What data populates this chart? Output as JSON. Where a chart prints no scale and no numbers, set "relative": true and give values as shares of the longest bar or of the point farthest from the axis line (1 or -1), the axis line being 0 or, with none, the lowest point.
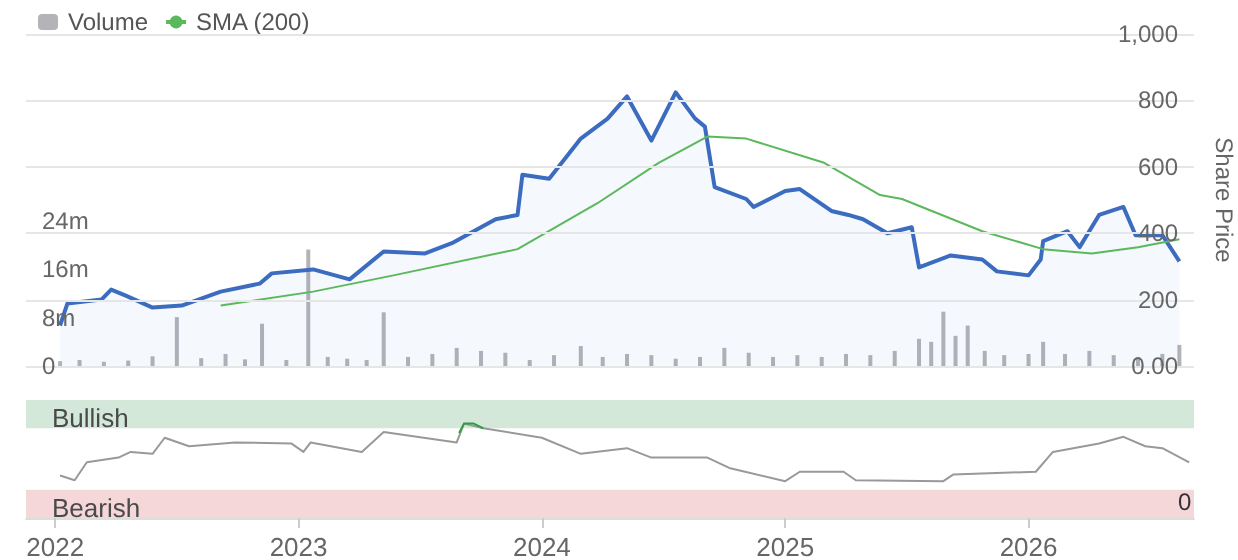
{
  "chart_data": [
    {
      "type": "line",
      "ylabel": "Share Price",
      "legend": "top left",
      "grid": "y",
      "tick_labels": "y",
      "xlim": [
        2021.88,
        2026.68
      ],
      "xticks": [
        2022,
        2023,
        2024,
        2025,
        2026
      ],
      "ylim": [
        0,
        1000
      ],
      "yticks": [
        {
          "value": 0,
          "label": "0.00"
        },
        200,
        400,
        600,
        800,
        {
          "value": 1000,
          "label": "1,000"
        }
      ],
      "y2lim": [
        0,
        55
      ],
      "y2ticks": [
        0,
        {
          "value": 8,
          "label": "8m"
        },
        {
          "value": 16,
          "label": "16m"
        },
        {
          "value": 24,
          "label": "24m"
        }
      ],
      "series": [
        {
          "type": "bar",
          "name": "Volume",
          "axis": "y2",
          "color": "#b4b4b8",
          "x": [
            2022.02,
            2022.1,
            2022.2,
            2022.3,
            2022.4,
            2022.5,
            2022.6,
            2022.7,
            2022.78,
            2022.85,
            2022.95,
            2023.04,
            2023.12,
            2023.2,
            2023.28,
            2023.35,
            2023.45,
            2023.55,
            2023.65,
            2023.75,
            2023.85,
            2023.95,
            2024.05,
            2024.16,
            2024.25,
            2024.35,
            2024.45,
            2024.55,
            2024.65,
            2024.75,
            2024.85,
            2024.95,
            2025.05,
            2025.15,
            2025.25,
            2025.35,
            2025.45,
            2025.55,
            2025.6,
            2025.65,
            2025.7,
            2025.75,
            2025.82,
            2025.9,
            2026.0,
            2026.06,
            2026.15,
            2026.25,
            2026.35,
            2026.45,
            2026.55,
            2026.62
          ],
          "values": [
            0.8,
            1.0,
            0.7,
            0.9,
            1.6,
            8.1,
            1.3,
            2.0,
            1.1,
            7.0,
            1.0,
            19.3,
            1.5,
            1.2,
            1.0,
            8.9,
            1.5,
            2.0,
            3.0,
            2.5,
            2.2,
            1.0,
            1.8,
            3.3,
            1.5,
            2.0,
            1.8,
            1.2,
            1.5,
            3.0,
            2.2,
            1.5,
            1.8,
            1.5,
            2.0,
            1.8,
            2.5,
            4.5,
            4.0,
            9.0,
            5.0,
            6.7,
            2.5,
            1.8,
            2.0,
            4.0,
            2.0,
            2.5,
            1.8,
            1.5,
            2.0,
            3.5
          ]
        },
        {
          "type": "area",
          "color": "#3c6cc0",
          "x": [
            2022.02,
            2022.05,
            2022.19,
            2022.23,
            2022.29,
            2022.4,
            2022.52,
            2022.68,
            2022.84,
            2022.89,
            2023.06,
            2023.21,
            2023.35,
            2023.52,
            2023.63,
            2023.81,
            2023.9,
            2023.92,
            2024.03,
            2024.16,
            2024.27,
            2024.35,
            2024.45,
            2024.55,
            2024.63,
            2024.67,
            2024.71,
            2024.84,
            2024.87,
            2025.0,
            2025.06,
            2025.19,
            2025.26,
            2025.32,
            2025.42,
            2025.52,
            2025.55,
            2025.68,
            2025.81,
            2025.87,
            2026.0,
            2026.05,
            2026.06,
            2026.16,
            2026.21,
            2026.29,
            2026.39,
            2026.44,
            2026.55,
            2026.62
          ],
          "values": [
            122,
            188,
            200,
            230,
            212,
            176,
            182,
            224,
            248,
            279,
            291,
            261,
            345,
            339,
            370,
            442,
            455,
            576,
            564,
            685,
            745,
            812,
            679,
            824,
            745,
            721,
            539,
            503,
            479,
            527,
            533,
            467,
            455,
            442,
            400,
            418,
            297,
            333,
            321,
            285,
            273,
            321,
            376,
            406,
            358,
            455,
            479,
            394,
            394,
            315
          ]
        },
        {
          "name": "SMA (200)",
          "color": "#5cb85c",
          "x": [
            2022.68,
            2023.06,
            2023.39,
            2023.9,
            2024.23,
            2024.48,
            2024.68,
            2024.84,
            2025.16,
            2025.39,
            2025.48,
            2025.81,
            2026.06,
            2026.26,
            2026.45,
            2026.62
          ],
          "values": [
            182,
            224,
            273,
            352,
            491,
            612,
            691,
            685,
            612,
            515,
            503,
            406,
            352,
            339,
            358,
            382
          ]
        }
      ]
    },
    {
      "type": "line",
      "relative": true,
      "xlim": [
        2021.88,
        2026.68
      ],
      "xticks": [
        2022,
        2023,
        2024,
        2025,
        2026
      ],
      "annotations": [
        "0"
      ],
      "grid": false,
      "bands": [
        {
          "axis": "y",
          "from": 0.95,
          "to": 1.25,
          "label": "Bullish",
          "color": "#d4e8da"
        },
        {
          "axis": "y",
          "from": 0,
          "to": 0.3,
          "label": "Bearish",
          "color": "#f5d6d9"
        }
      ],
      "series": [
        {
          "color": "#999999",
          "x": [
            2022.02,
            2022.08,
            2022.13,
            2022.26,
            2022.31,
            2022.4,
            2022.45,
            2022.55,
            2022.74,
            2022.97,
            2023.02,
            2023.05,
            2023.26,
            2023.35,
            2023.65,
            2023.68,
            2023.76,
            2024.0,
            2024.16,
            2024.35,
            2024.45,
            2024.68,
            2024.77,
            2025.0,
            2025.06,
            2025.24,
            2025.29,
            2025.65,
            2025.69,
            2026.03,
            2026.1,
            2026.29,
            2026.39,
            2026.48,
            2026.55,
            2026.66
          ],
          "values": [
            0.45,
            0.4,
            0.59,
            0.64,
            0.7,
            0.68,
            0.85,
            0.76,
            0.8,
            0.79,
            0.7,
            0.8,
            0.7,
            0.91,
            0.8,
            1,
            0.95,
            0.85,
            0.68,
            0.74,
            0.64,
            0.64,
            0.53,
            0.39,
            0.49,
            0.49,
            0.4,
            0.39,
            0.46,
            0.49,
            0.7,
            0.79,
            0.86,
            0.76,
            0.74,
            0.59
          ]
        },
        {
          "color": "#2e9e3e",
          "x": [
            2023.66,
            2023.68,
            2023.72,
            2023.76
          ],
          "values": [
            0.9,
            1,
            1,
            0.95
          ]
        }
      ]
    }
  ]
}
